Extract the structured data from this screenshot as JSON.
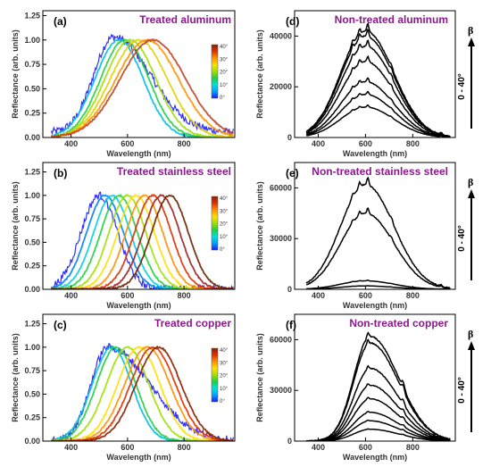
{
  "figure": {
    "wavelength_axis_label": "Wavelength (nm)",
    "reflectance_axis_label": "Reflectance (arb. units)",
    "colorbar_labels": [
      "40°",
      "30°",
      "20°",
      "10°",
      "0°"
    ],
    "colorbar_colors": [
      "#1a1aff",
      "#00a0ff",
      "#00e0e0",
      "#20d040",
      "#a0e000",
      "#ffe000",
      "#ff9000",
      "#e03000",
      "#8b2000"
    ],
    "beta_symbol": "β",
    "angle_range_label": "0 - 40°"
  },
  "chart_data": [
    {
      "id": "a",
      "letter": "(a)",
      "title": "Treated aluminum",
      "type": "line",
      "normalized": true,
      "xlim": [
        300,
        980
      ],
      "ylim": [
        0,
        1.3
      ],
      "xticks": [
        400,
        600,
        800
      ],
      "yticks": [
        0,
        0.25,
        0.5,
        0.75,
        1.0,
        1.25
      ],
      "ytick_labels": [
        "0.00",
        "0.25",
        "0.50",
        "0.75",
        "1.00",
        "1.25"
      ],
      "series_peaks_nm": [
        550,
        570,
        590,
        610,
        640,
        670,
        690
      ],
      "series_widths_nm": [
        85,
        85,
        85,
        90,
        100,
        110,
        115
      ],
      "series_colors": [
        "#1a1aff",
        "#00c0e0",
        "#20d040",
        "#a0e000",
        "#e0d000",
        "#ff9000",
        "#c04020"
      ]
    },
    {
      "id": "b",
      "letter": "(b)",
      "title": "Treated stainless steel",
      "type": "line",
      "normalized": true,
      "xlim": [
        300,
        980
      ],
      "ylim": [
        0,
        1.35
      ],
      "xticks": [
        400,
        600,
        800
      ],
      "yticks": [
        0,
        0.25,
        0.5,
        0.75,
        1.0,
        1.25
      ],
      "ytick_labels": [
        "0.00",
        "0.25",
        "0.50",
        "0.75",
        "1.00",
        "1.25"
      ],
      "series_peaks_nm": [
        500,
        520,
        545,
        570,
        600,
        630,
        660,
        690,
        720,
        750
      ],
      "series_widths_nm": [
        65,
        65,
        65,
        65,
        65,
        65,
        65,
        65,
        65,
        65
      ],
      "series_colors": [
        "#1a1aff",
        "#0080ff",
        "#00d0e0",
        "#20d040",
        "#a0e000",
        "#ffe000",
        "#ff9000",
        "#e03000",
        "#a02020",
        "#6b2000"
      ]
    },
    {
      "id": "c",
      "letter": "(c)",
      "title": "Treated copper",
      "type": "line",
      "normalized": true,
      "xlim": [
        300,
        980
      ],
      "ylim": [
        0,
        1.35
      ],
      "xticks": [
        400,
        600,
        800
      ],
      "yticks": [
        0,
        0.25,
        0.5,
        0.75,
        1.0,
        1.25
      ],
      "ytick_labels": [
        "0.00",
        "0.25",
        "0.50",
        "0.75",
        "1.00",
        "1.25"
      ],
      "series_peaks_nm": [
        530,
        545,
        560,
        600,
        640,
        670,
        690,
        710
      ],
      "series_widths_nm": [
        70,
        70,
        70,
        75,
        75,
        80,
        80,
        80
      ],
      "series_colors": [
        "#1a1aff",
        "#00c0e0",
        "#20d040",
        "#a0e000",
        "#ffe000",
        "#ff9000",
        "#e03000",
        "#8b2000"
      ]
    },
    {
      "id": "d",
      "letter": "(d)",
      "title": "Non-treated aluminum",
      "type": "line",
      "normalized": false,
      "xlim": [
        300,
        980
      ],
      "ylim": [
        0,
        50000
      ],
      "xticks": [
        400,
        600,
        800
      ],
      "yticks": [
        0,
        20000,
        40000
      ],
      "ytick_labels": [
        "0",
        "20000",
        "40000"
      ],
      "series_peaks": [
        12000,
        17000,
        22000,
        30000,
        36000,
        40000,
        42000
      ],
      "series_colors": [
        "#000000",
        "#000000",
        "#000000",
        "#000000",
        "#000000",
        "#000000",
        "#000000"
      ]
    },
    {
      "id": "e",
      "letter": "(e)",
      "title": "Non-treated stainless steel",
      "type": "line",
      "normalized": false,
      "xlim": [
        300,
        980
      ],
      "ylim": [
        0,
        75000
      ],
      "xticks": [
        400,
        600,
        800
      ],
      "yticks": [
        0,
        30000,
        60000
      ],
      "ytick_labels": [
        "0",
        "30000",
        "60000"
      ],
      "series_peaks": [
        2000,
        5000,
        45000,
        62000
      ],
      "series_colors": [
        "#000000",
        "#000000",
        "#000000",
        "#000000"
      ]
    },
    {
      "id": "f",
      "letter": "(f)",
      "title": "Non-treated copper",
      "type": "line",
      "normalized": false,
      "xlim": [
        300,
        980
      ],
      "ylim": [
        0,
        75000
      ],
      "xticks": [
        400,
        600,
        800
      ],
      "yticks": [
        0,
        30000,
        60000
      ],
      "ytick_labels": [
        "0",
        "30000",
        "60000"
      ],
      "series_peaks": [
        7000,
        12000,
        17000,
        25000,
        33000,
        43000,
        58000,
        62000
      ],
      "series_colors": [
        "#000000",
        "#000000",
        "#000000",
        "#000000",
        "#000000",
        "#000000",
        "#000000",
        "#000000"
      ]
    }
  ]
}
